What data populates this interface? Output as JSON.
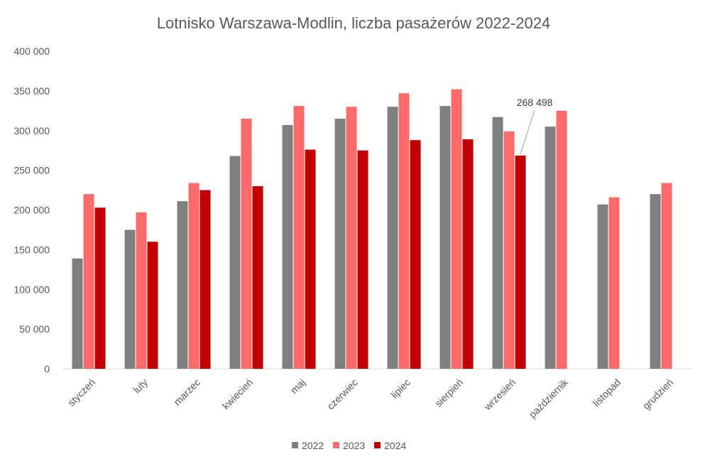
{
  "chart_data": {
    "type": "bar",
    "title": "Lotnisko Warszawa-Modlin, liczba pasażerów 2022-2024",
    "xlabel": "",
    "ylabel": "",
    "ylim": [
      0,
      400000
    ],
    "yticks": [
      0,
      50000,
      100000,
      150000,
      200000,
      250000,
      300000,
      350000,
      400000
    ],
    "ytick_labels": [
      "0",
      "50 000",
      "100 000",
      "150 000",
      "200 000",
      "250 000",
      "300 000",
      "350 000",
      "400 000"
    ],
    "grid": false,
    "legend_position": "bottom",
    "categories": [
      "styczeń",
      "luty",
      "marzec",
      "kwiecień",
      "maj",
      "czerwiec",
      "lipiec",
      "sierpień",
      "wrzesień",
      "październik",
      "listopad",
      "grudzień"
    ],
    "series": [
      {
        "name": "2022",
        "color": "#7f7f7f",
        "values": [
          139000,
          175000,
          211000,
          268000,
          307000,
          315000,
          330000,
          331000,
          317000,
          305000,
          207000,
          220000
        ]
      },
      {
        "name": "2023",
        "color": "#ff6b6b",
        "values": [
          220000,
          197000,
          234000,
          315000,
          331000,
          330000,
          347000,
          352000,
          299000,
          325000,
          216000,
          234000
        ]
      },
      {
        "name": "2024",
        "color": "#c00000",
        "values": [
          203000,
          160000,
          225000,
          230000,
          276000,
          275000,
          288000,
          289000,
          268498,
          null,
          null,
          null
        ]
      }
    ],
    "annotations": [
      {
        "text": "268 498",
        "category": "wrzesień",
        "series": "2024",
        "value": 268498
      }
    ]
  }
}
